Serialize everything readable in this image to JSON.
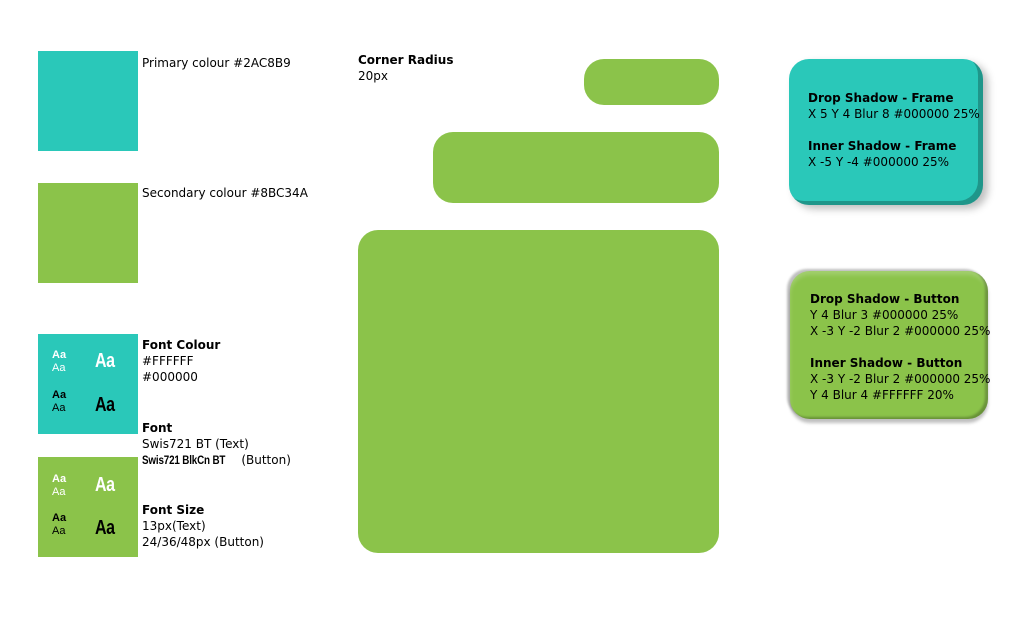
{
  "colors": {
    "primary": "#2AC8B9",
    "secondary": "#8BC34A",
    "white": "#FFFFFF",
    "black": "#000000"
  },
  "swatches": {
    "primary_label": "Primary colour #2AC8B9",
    "secondary_label": "Secondary colour #8BC34A"
  },
  "font_colour": {
    "title": "Font Colour",
    "value1": "#FFFFFF",
    "value2": "#000000"
  },
  "font": {
    "title": "Font",
    "text_font": "Swis721 BT (Text)",
    "button_font_name": "Swis721 BlkCn BT",
    "button_font_suffix": " (Button)"
  },
  "font_size": {
    "title": "Font Size",
    "text_size": "13px(Text)",
    "button_size": "24/36/48px (Button)"
  },
  "samples": {
    "aa": "Aa"
  },
  "corner_radius": {
    "title": "Corner Radius",
    "value": "20px"
  },
  "frame_card": {
    "drop_title": "Drop Shadow - Frame",
    "drop_value": "X 5 Y 4 Blur 8 #000000 25%",
    "inner_title": "Inner Shadow - Frame",
    "inner_value": "X -5 Y -4  #000000 25%"
  },
  "button_card": {
    "drop_title": "Drop Shadow - Button",
    "drop_value1": "Y 4 Blur 3 #000000 25%",
    "drop_value2": "X -3 Y -2 Blur 2 #000000 25%",
    "inner_title": "Inner Shadow - Button",
    "inner_value1": "X -3 Y -2 Blur 2 #000000 25%",
    "inner_value2": "Y 4 Blur 4 #FFFFFF 20%"
  }
}
